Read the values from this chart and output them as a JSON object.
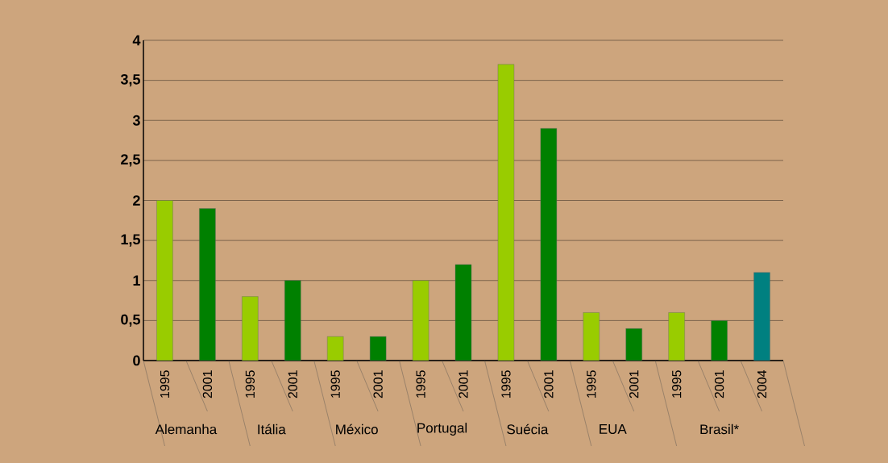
{
  "chart_data": {
    "type": "bar",
    "categories": [
      "1995",
      "2001",
      "1995",
      "2001",
      "1995",
      "2001",
      "1995",
      "2001",
      "1995",
      "2001",
      "1995",
      "2001",
      "1995",
      "2001",
      "2004"
    ],
    "values": [
      2,
      1.9,
      0.8,
      1,
      0.3,
      0.3,
      1,
      1.2,
      3.7,
      2.9,
      0.6,
      0.4,
      0.6,
      0.5,
      1.1
    ],
    "colors": [
      "#99cc00",
      "#008000",
      "#99cc00",
      "#008000",
      "#99cc00",
      "#008000",
      "#99cc00",
      "#008000",
      "#99cc00",
      "#008000",
      "#99cc00",
      "#008000",
      "#99cc00",
      "#008000",
      "#008080"
    ],
    "ylim": [
      0,
      4
    ],
    "yticks": [
      0,
      {
        "value": 0.5,
        "label": "0,5"
      },
      1,
      {
        "value": 1.5,
        "label": "1,5"
      },
      2,
      {
        "value": 2.5,
        "label": "2,5"
      },
      3,
      {
        "value": 3.5,
        "label": "3,5"
      },
      4
    ],
    "grid": "y",
    "annotations": [
      "Alemanha",
      "Itália",
      "México",
      "Portugal",
      "Suécia",
      "EUA",
      "Brasil*"
    ]
  }
}
